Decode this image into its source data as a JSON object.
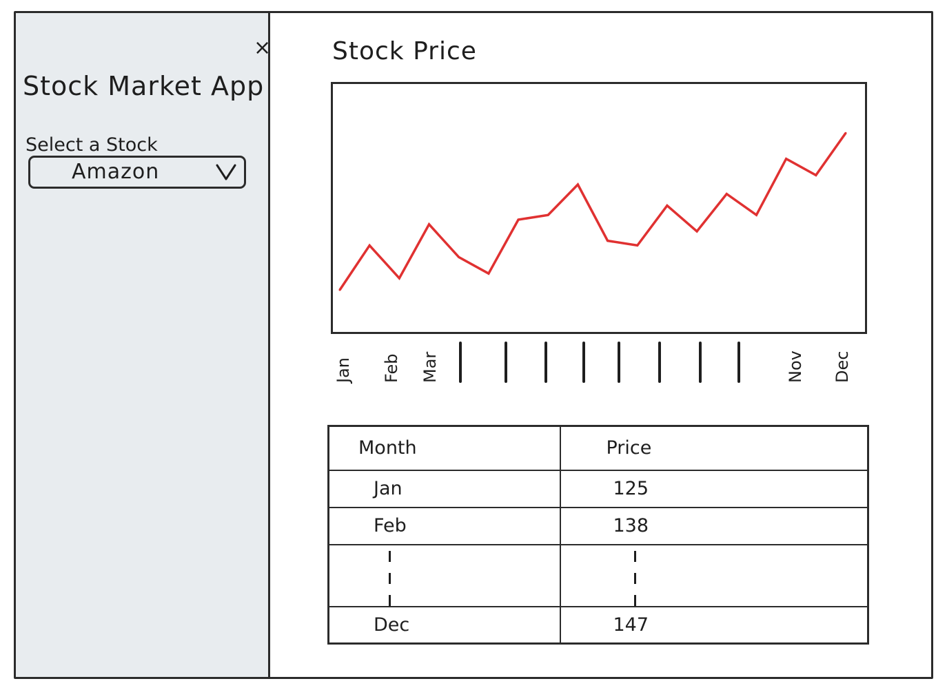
{
  "sidebar": {
    "close_icon": "close-icon",
    "close_glyph": "×",
    "app_title": "Stock Market App",
    "select_label": "Select a Stock",
    "selected_stock": "Amazon",
    "dropdown_icon": "chevron-down-icon"
  },
  "main": {
    "title": "Stock Price",
    "table": {
      "headers": [
        "Month",
        "Price"
      ],
      "rows": [
        {
          "month": "Jan",
          "price": "125"
        },
        {
          "month": "Feb",
          "price": "138"
        },
        {
          "month": "Dec",
          "price": "147"
        }
      ]
    }
  },
  "chart_data": {
    "type": "line",
    "title": "Stock Price",
    "x_tick_labels": [
      "Jan",
      "Feb",
      "Mar",
      "",
      "",
      "",
      "",
      "",
      "",
      "",
      "",
      "Nov",
      "Dec"
    ],
    "series": [
      {
        "color": "#e03131",
        "values": [
          15,
          34,
          20,
          43,
          29,
          22,
          45,
          47,
          60,
          36,
          34,
          51,
          40,
          56,
          47,
          71,
          64,
          82
        ]
      }
    ],
    "ylim": [
      0,
      100
    ],
    "grid": false
  },
  "colors": {
    "sidebar_bg": "#e8ecef",
    "line": "#e03131",
    "stroke": "#2b2b2b"
  }
}
